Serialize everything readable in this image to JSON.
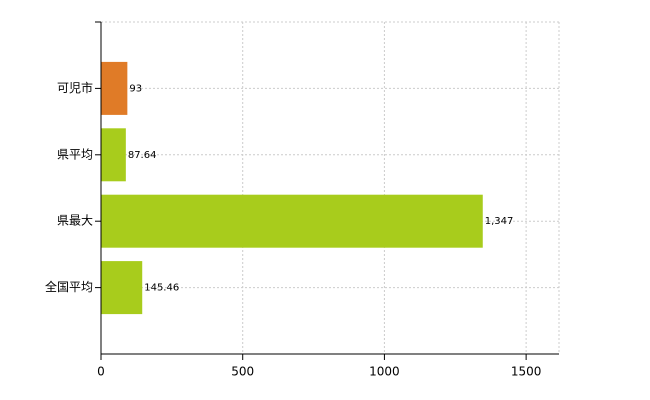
{
  "chart_data": {
    "type": "barh",
    "categories": [
      "可児市",
      "県平均",
      "県最大",
      "全国平均"
    ],
    "values": [
      93,
      87.64,
      1347,
      145.46
    ],
    "value_labels": [
      "93",
      "87.64",
      "1,347",
      "145.46"
    ],
    "colors": [
      "#e07b27",
      "#a8cc1c",
      "#a8cc1c",
      "#a8cc1c"
    ],
    "xlim": [
      0,
      1616
    ],
    "xticks": [
      0,
      500,
      1000,
      1500
    ],
    "grid": true
  }
}
